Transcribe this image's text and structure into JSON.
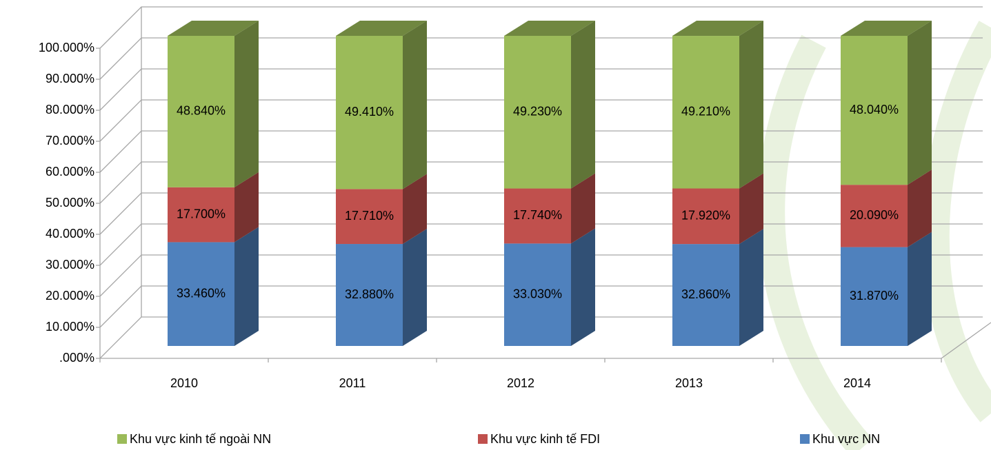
{
  "chart_data": {
    "type": "bar3d_stacked",
    "categories": [
      "2010",
      "2011",
      "2012",
      "2013",
      "2014"
    ],
    "series": [
      {
        "name": "Khu vực NN",
        "color": "#4f81bd",
        "values": [
          33.46,
          32.88,
          33.03,
          32.86,
          31.87
        ],
        "value_labels": [
          "33.460%",
          "32.880%",
          "33.030%",
          "32.860%",
          "31.870%"
        ]
      },
      {
        "name": "Khu vực kinh tế FDI",
        "color": "#c0504d",
        "values": [
          17.7,
          17.71,
          17.74,
          17.92,
          20.09
        ],
        "value_labels": [
          "17.700%",
          "17.710%",
          "17.740%",
          "17.920%",
          "20.090%"
        ]
      },
      {
        "name": "Khu vực kinh tế ngoài NN",
        "color": "#9bbb59",
        "values": [
          48.84,
          49.41,
          49.23,
          49.21,
          48.04
        ],
        "value_labels": [
          "48.840%",
          "49.410%",
          "49.230%",
          "49.210%",
          "48.040%"
        ]
      }
    ],
    "ylim": [
      0,
      100
    ],
    "yticks": [
      {
        "value": 0,
        "label": ".000%"
      },
      {
        "value": 10,
        "label": "10.000%"
      },
      {
        "value": 20,
        "label": "20.000%"
      },
      {
        "value": 30,
        "label": "30.000%"
      },
      {
        "value": 40,
        "label": "40.000%"
      },
      {
        "value": 50,
        "label": "50.000%"
      },
      {
        "value": 60,
        "label": "60.000%"
      },
      {
        "value": 70,
        "label": "70.000%"
      },
      {
        "value": 80,
        "label": "80.000%"
      },
      {
        "value": 90,
        "label": "90.000%"
      },
      {
        "value": 100,
        "label": "100.000%"
      }
    ],
    "grid": true,
    "legend": "bottom"
  }
}
